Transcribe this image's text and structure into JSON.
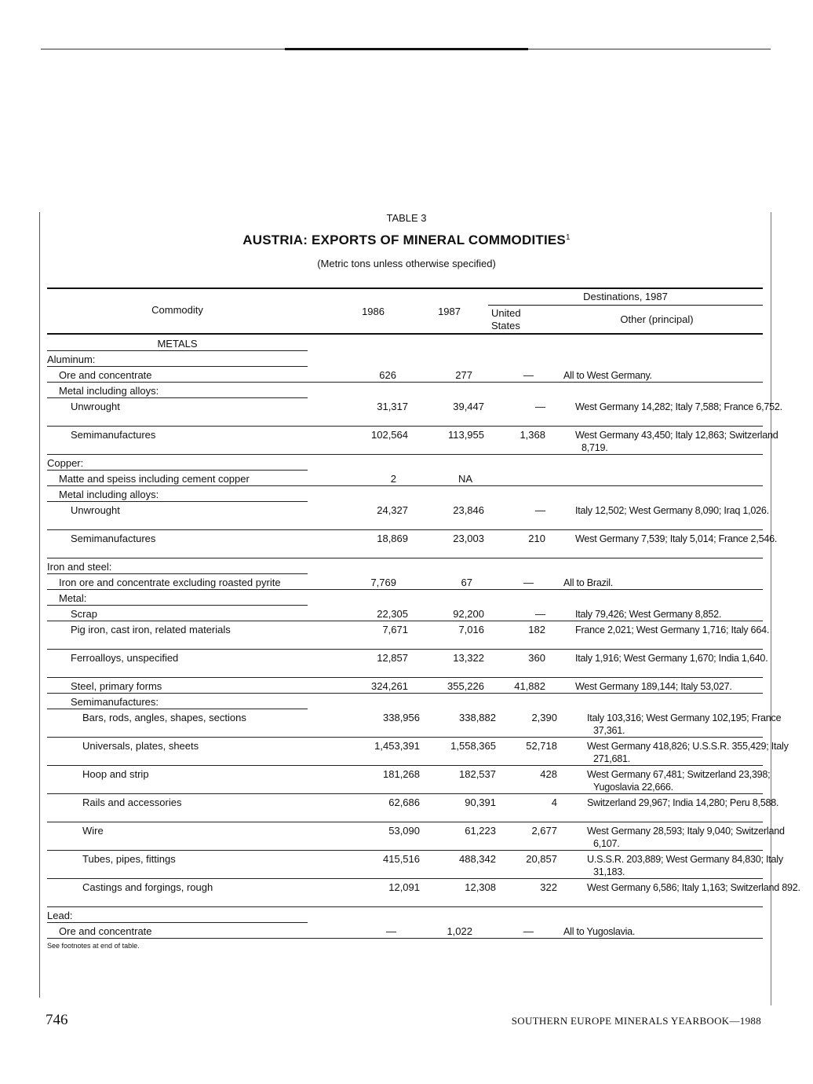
{
  "table": {
    "number": "TABLE 3",
    "title": "AUSTRIA: EXPORTS OF MINERAL COMMODITIES",
    "title_footnote": "1",
    "subtitle": "(Metric tons unless otherwise specified)",
    "headers": {
      "commodity": "Commodity",
      "y1986": "1986",
      "y1987": "1987",
      "destinations": "Destinations, 1987",
      "us_line1": "United",
      "us_line2": "States",
      "other": "Other (principal)"
    },
    "rows": [
      {
        "kind": "heading",
        "level": 0,
        "center": true,
        "label": "METALS"
      },
      {
        "kind": "heading",
        "level": 0,
        "label": "Aluminum:"
      },
      {
        "kind": "item",
        "level": 1,
        "label": "Ore and concentrate",
        "y1986": "626",
        "y1987": "277",
        "us": "—",
        "other": "All to West Germany."
      },
      {
        "kind": "heading",
        "level": 1,
        "label": "Metal including alloys:"
      },
      {
        "kind": "item",
        "level": 2,
        "label": "Unwrought",
        "y1986": "31,317",
        "y1987": "39,447",
        "us": "—",
        "other": "West Germany 14,282; Italy 7,588; France 6,752."
      },
      {
        "kind": "item",
        "level": 2,
        "label": "Semimanufactures",
        "y1986": "102,564",
        "y1987": "113,955",
        "us": "1,368",
        "other": "West Germany 43,450; Italy 12,863; Switzerland 8,719."
      },
      {
        "kind": "heading",
        "level": 0,
        "label": "Copper:"
      },
      {
        "kind": "item",
        "level": 1,
        "label": "Matte and speiss including cement copper",
        "y1986": "2",
        "y1987": "NA",
        "us": "",
        "other": ""
      },
      {
        "kind": "heading",
        "level": 1,
        "label": "Metal including alloys:"
      },
      {
        "kind": "item",
        "level": 2,
        "label": "Unwrought",
        "y1986": "24,327",
        "y1987": "23,846",
        "us": "—",
        "other": "Italy 12,502; West Germany 8,090; Iraq 1,026."
      },
      {
        "kind": "item",
        "level": 2,
        "label": "Semimanufactures",
        "y1986": "18,869",
        "y1987": "23,003",
        "us": "210",
        "other": "West Germany 7,539; Italy 5,014; France 2,546."
      },
      {
        "kind": "heading",
        "level": 0,
        "label": "Iron and steel:"
      },
      {
        "kind": "item",
        "level": 1,
        "label": "Iron ore and concentrate excluding roasted pyrite",
        "y1986": "7,769",
        "y1987": "67",
        "us": "—",
        "other": "All to Brazil."
      },
      {
        "kind": "heading",
        "level": 1,
        "label": "Metal:"
      },
      {
        "kind": "item",
        "level": 2,
        "label": "Scrap",
        "y1986": "22,305",
        "y1987": "92,200",
        "us": "—",
        "other": "Italy 79,426; West Germany 8,852."
      },
      {
        "kind": "item",
        "level": 2,
        "label": "Pig iron, cast iron, related materials",
        "y1986": "7,671",
        "y1987": "7,016",
        "us": "182",
        "other": "France 2,021; West Germany 1,716; Italy 664."
      },
      {
        "kind": "item",
        "level": 2,
        "label": "Ferroalloys, unspecified",
        "y1986": "12,857",
        "y1987": "13,322",
        "us": "360",
        "other": "Italy 1,916; West Germany 1,670; India 1,640."
      },
      {
        "kind": "item",
        "level": 2,
        "label": "Steel, primary forms",
        "y1986": "324,261",
        "y1987": "355,226",
        "us": "41,882",
        "other": "West Germany 189,144; Italy 53,027."
      },
      {
        "kind": "heading",
        "level": 2,
        "label": "Semimanufactures:"
      },
      {
        "kind": "item",
        "level": 3,
        "label": "Bars, rods, angles, shapes, sections",
        "y1986": "338,956",
        "y1987": "338,882",
        "us": "2,390",
        "other": "Italy 103,316; West Germany 102,195; France 37,361."
      },
      {
        "kind": "item",
        "level": 3,
        "label": "Universals, plates, sheets",
        "y1986": "1,453,391",
        "y1987": "1,558,365",
        "us": "52,718",
        "other": "West Germany 418,826; U.S.S.R. 355,429; Italy 271,681."
      },
      {
        "kind": "item",
        "level": 3,
        "label": "Hoop and strip",
        "y1986": "181,268",
        "y1987": "182,537",
        "us": "428",
        "other": "West Germany 67,481; Switzerland 23,398; Yugoslavia 22,666."
      },
      {
        "kind": "item",
        "level": 3,
        "label": "Rails and accessories",
        "y1986": "62,686",
        "y1987": "90,391",
        "us": "4",
        "other": "Switzerland 29,967; India 14,280; Peru 8,588."
      },
      {
        "kind": "item",
        "level": 3,
        "label": "Wire",
        "y1986": "53,090",
        "y1987": "61,223",
        "us": "2,677",
        "other": "West Germany 28,593; Italy 9,040; Switzerland 6,107."
      },
      {
        "kind": "item",
        "level": 3,
        "label": "Tubes, pipes, fittings",
        "y1986": "415,516",
        "y1987": "488,342",
        "us": "20,857",
        "other": "U.S.S.R. 203,889; West Germany 84,830; Italy 31,183."
      },
      {
        "kind": "item",
        "level": 3,
        "label": "Castings and forgings, rough",
        "y1986": "12,091",
        "y1987": "12,308",
        "us": "322",
        "other": "West Germany 6,586; Italy 1,163; Switzerland 892."
      },
      {
        "kind": "heading",
        "level": 0,
        "label": "Lead:"
      },
      {
        "kind": "item",
        "level": 1,
        "label": "Ore and concentrate",
        "y1986": "—",
        "y1987": "1,022",
        "us": "—",
        "other": "All to Yugoslavia."
      }
    ],
    "footnote": "See footnotes at end of table."
  },
  "footer": {
    "page_number": "746",
    "running_title": "SOUTHERN EUROPE MINERALS YEARBOOK—1988"
  }
}
